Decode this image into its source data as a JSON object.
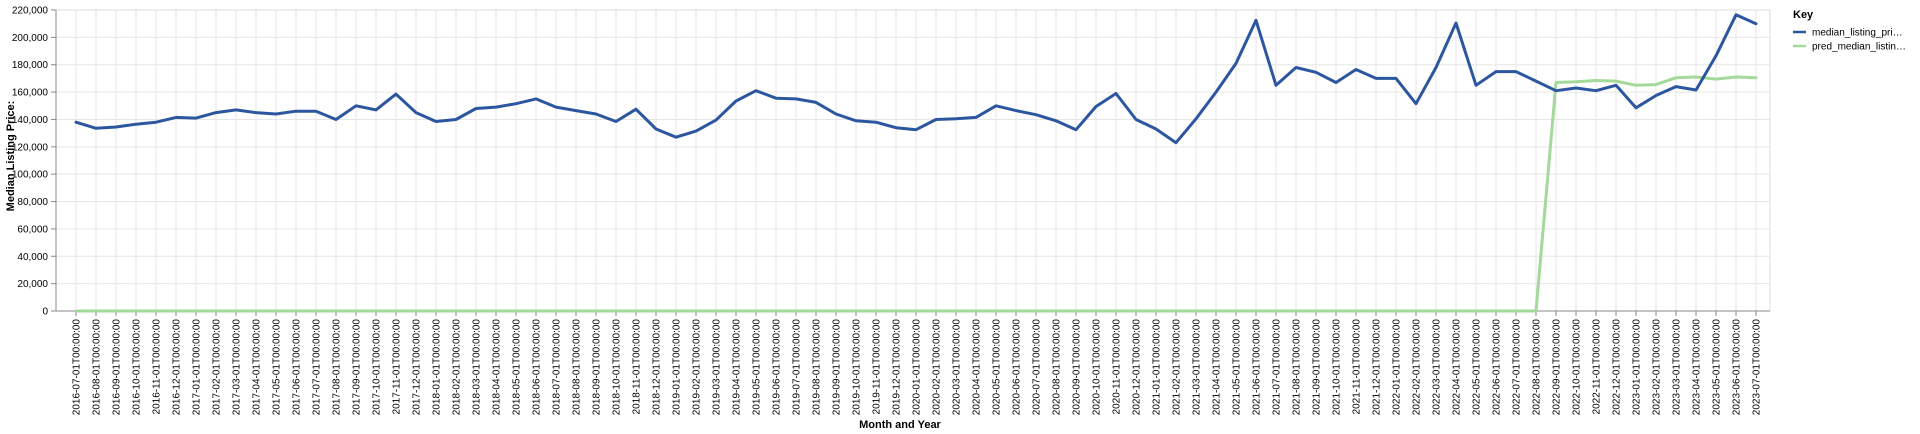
{
  "chart_data": {
    "type": "line",
    "xlabel": "Month and Year",
    "ylabel": "Median Listing Price:",
    "ylim": [
      0,
      220000
    ],
    "y_ticks": [
      0,
      20000,
      40000,
      60000,
      80000,
      100000,
      120000,
      140000,
      160000,
      180000,
      200000,
      220000
    ],
    "y_tick_labels": [
      "0",
      "20,000",
      "40,000",
      "60,000",
      "80,000",
      "100,000",
      "120,000",
      "140,000",
      "160,000",
      "180,000",
      "200,000",
      "220,000"
    ],
    "grid": true,
    "legend": {
      "title": "Key",
      "placement": "top-right"
    },
    "x": [
      "2016-07-01T00:00:00",
      "2016-08-01T00:00:00",
      "2016-09-01T00:00:00",
      "2016-10-01T00:00:00",
      "2016-11-01T00:00:00",
      "2016-12-01T00:00:00",
      "2017-01-01T00:00:00",
      "2017-02-01T00:00:00",
      "2017-03-01T00:00:00",
      "2017-04-01T00:00:00",
      "2017-05-01T00:00:00",
      "2017-06-01T00:00:00",
      "2017-07-01T00:00:00",
      "2017-08-01T00:00:00",
      "2017-09-01T00:00:00",
      "2017-10-01T00:00:00",
      "2017-11-01T00:00:00",
      "2017-12-01T00:00:00",
      "2018-01-01T00:00:00",
      "2018-02-01T00:00:00",
      "2018-03-01T00:00:00",
      "2018-04-01T00:00:00",
      "2018-05-01T00:00:00",
      "2018-06-01T00:00:00",
      "2018-07-01T00:00:00",
      "2018-08-01T00:00:00",
      "2018-09-01T00:00:00",
      "2018-10-01T00:00:00",
      "2018-11-01T00:00:00",
      "2018-12-01T00:00:00",
      "2019-01-01T00:00:00",
      "2019-02-01T00:00:00",
      "2019-03-01T00:00:00",
      "2019-04-01T00:00:00",
      "2019-05-01T00:00:00",
      "2019-06-01T00:00:00",
      "2019-07-01T00:00:00",
      "2019-08-01T00:00:00",
      "2019-09-01T00:00:00",
      "2019-10-01T00:00:00",
      "2019-11-01T00:00:00",
      "2019-12-01T00:00:00",
      "2020-01-01T00:00:00",
      "2020-02-01T00:00:00",
      "2020-03-01T00:00:00",
      "2020-04-01T00:00:00",
      "2020-05-01T00:00:00",
      "2020-06-01T00:00:00",
      "2020-07-01T00:00:00",
      "2020-08-01T00:00:00",
      "2020-09-01T00:00:00",
      "2020-10-01T00:00:00",
      "2020-11-01T00:00:00",
      "2020-12-01T00:00:00",
      "2021-01-01T00:00:00",
      "2021-02-01T00:00:00",
      "2021-03-01T00:00:00",
      "2021-04-01T00:00:00",
      "2021-05-01T00:00:00",
      "2021-06-01T00:00:00",
      "2021-07-01T00:00:00",
      "2021-08-01T00:00:00",
      "2021-09-01T00:00:00",
      "2021-10-01T00:00:00",
      "2021-11-01T00:00:00",
      "2021-12-01T00:00:00",
      "2022-01-01T00:00:00",
      "2022-02-01T00:00:00",
      "2022-03-01T00:00:00",
      "2022-04-01T00:00:00",
      "2022-05-01T00:00:00",
      "2022-06-01T00:00:00",
      "2022-07-01T00:00:00",
      "2022-08-01T00:00:00",
      "2022-09-01T00:00:00",
      "2022-10-01T00:00:00",
      "2022-11-01T00:00:00",
      "2022-12-01T00:00:00",
      "2023-01-01T00:00:00",
      "2023-02-01T00:00:00",
      "2023-03-01T00:00:00",
      "2023-04-01T00:00:00",
      "2023-05-01T00:00:00",
      "2023-06-01T00:00:00",
      "2023-07-01T00:00:00"
    ],
    "series": [
      {
        "name": "median_listing_pri…",
        "color": "#2c57a0",
        "values": [
          138000,
          133500,
          134500,
          136500,
          138000,
          141500,
          141000,
          145000,
          147000,
          145000,
          144000,
          146000,
          146000,
          140000,
          150000,
          147000,
          158500,
          145000,
          138500,
          140000,
          148000,
          149000,
          151500,
          155000,
          149000,
          146500,
          144000,
          138500,
          147500,
          133000,
          127000,
          131500,
          139500,
          153500,
          161000,
          155500,
          155000,
          152500,
          144000,
          139000,
          138000,
          134000,
          132500,
          140000,
          140500,
          141500,
          150000,
          146500,
          143500,
          139000,
          132500,
          149500,
          159000,
          140000,
          133000,
          123000,
          140500,
          160000,
          181000,
          212500,
          165000,
          178000,
          174500,
          167000,
          176500,
          170000,
          170000,
          151500,
          178000,
          210500,
          165000,
          175000,
          175000,
          168000,
          161000,
          163000,
          161000,
          165000,
          148500,
          157500,
          164000,
          161500,
          186500,
          216500,
          210000
        ]
      },
      {
        "name": "pred_median_listin…",
        "color": "#a3d99a",
        "values": [
          0,
          0,
          0,
          0,
          0,
          0,
          0,
          0,
          0,
          0,
          0,
          0,
          0,
          0,
          0,
          0,
          0,
          0,
          0,
          0,
          0,
          0,
          0,
          0,
          0,
          0,
          0,
          0,
          0,
          0,
          0,
          0,
          0,
          0,
          0,
          0,
          0,
          0,
          0,
          0,
          0,
          0,
          0,
          0,
          0,
          0,
          0,
          0,
          0,
          0,
          0,
          0,
          0,
          0,
          0,
          0,
          0,
          0,
          0,
          0,
          0,
          0,
          0,
          0,
          0,
          0,
          0,
          0,
          0,
          0,
          0,
          0,
          0,
          0,
          167000,
          167500,
          168500,
          168000,
          165000,
          165500,
          170500,
          171000,
          169500,
          171000,
          170500
        ]
      }
    ]
  }
}
